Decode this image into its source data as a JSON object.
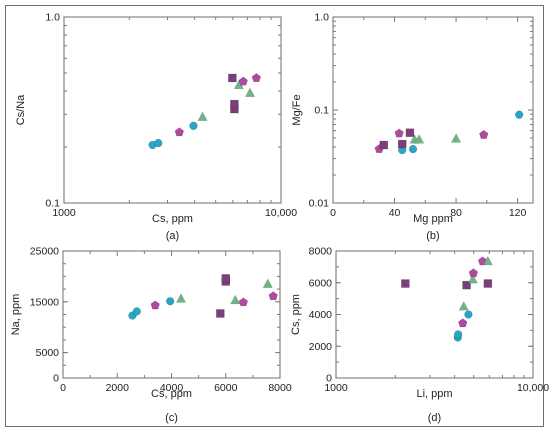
{
  "colors": {
    "circle": "#2aa5c6",
    "square": "#7b3f7b",
    "pentagon": "#b04a9e",
    "triangle": "#6fb589"
  },
  "chart_data": [
    {
      "id": "a",
      "type": "scatter",
      "panel_label": "(a)",
      "xlabel": "Cs, ppm",
      "ylabel": "Cs/Na",
      "xscale": "log",
      "yscale": "log",
      "xlim": [
        1000,
        10000
      ],
      "ylim": [
        0.1,
        1.0
      ],
      "xticks": [
        {
          "v": 1000,
          "label": "1000"
        },
        {
          "v": 10000,
          "label": "10,000"
        }
      ],
      "yticks": [
        {
          "v": 0.1,
          "label": "0.1"
        },
        {
          "v": 1.0,
          "label": "1.0"
        }
      ],
      "points": [
        {
          "shape": "circle",
          "x": 2560,
          "y": 0.205
        },
        {
          "shape": "circle",
          "x": 2720,
          "y": 0.21
        },
        {
          "shape": "pentagon",
          "x": 3400,
          "y": 0.24
        },
        {
          "shape": "circle",
          "x": 3950,
          "y": 0.26
        },
        {
          "shape": "triangle",
          "x": 4350,
          "y": 0.29
        },
        {
          "shape": "square",
          "x": 5970,
          "y": 0.47
        },
        {
          "shape": "square",
          "x": 6100,
          "y": 0.32
        },
        {
          "shape": "square",
          "x": 6100,
          "y": 0.34
        },
        {
          "shape": "triangle",
          "x": 6400,
          "y": 0.43
        },
        {
          "shape": "pentagon",
          "x": 6700,
          "y": 0.45
        },
        {
          "shape": "triangle",
          "x": 7200,
          "y": 0.39
        },
        {
          "shape": "pentagon",
          "x": 7700,
          "y": 0.47
        }
      ]
    },
    {
      "id": "b",
      "type": "scatter",
      "panel_label": "(b)",
      "xlabel": "Mg ppm",
      "ylabel": "Mg/Fe",
      "xscale": "linear",
      "yscale": "log",
      "xlim": [
        0,
        130
      ],
      "ylim": [
        0.01,
        1.0
      ],
      "xticks": [
        {
          "v": 0,
          "label": "0"
        },
        {
          "v": 40,
          "label": "40"
        },
        {
          "v": 80,
          "label": "80"
        },
        {
          "v": 120,
          "label": "120"
        }
      ],
      "yticks": [
        {
          "v": 0.01,
          "label": "0.01"
        },
        {
          "v": 0.1,
          "label": "0.1"
        },
        {
          "v": 1.0,
          "label": "1.0"
        }
      ],
      "points": [
        {
          "shape": "pentagon",
          "x": 30,
          "y": 0.038
        },
        {
          "shape": "square",
          "x": 33,
          "y": 0.042
        },
        {
          "shape": "pentagon",
          "x": 43,
          "y": 0.056
        },
        {
          "shape": "circle",
          "x": 45,
          "y": 0.037
        },
        {
          "shape": "square",
          "x": 45,
          "y": 0.043
        },
        {
          "shape": "square",
          "x": 50,
          "y": 0.057
        },
        {
          "shape": "circle",
          "x": 52,
          "y": 0.038
        },
        {
          "shape": "triangle",
          "x": 53,
          "y": 0.048
        },
        {
          "shape": "triangle",
          "x": 56,
          "y": 0.048
        },
        {
          "shape": "triangle",
          "x": 80,
          "y": 0.049
        },
        {
          "shape": "pentagon",
          "x": 98,
          "y": 0.054
        },
        {
          "shape": "circle",
          "x": 121,
          "y": 0.089
        }
      ]
    },
    {
      "id": "c",
      "type": "scatter",
      "panel_label": "(c)",
      "xlabel": "Cs, ppm",
      "ylabel": "Na, ppm",
      "xscale": "linear",
      "yscale": "linear",
      "xlim": [
        0,
        8000
      ],
      "ylim": [
        0,
        25000
      ],
      "xticks": [
        {
          "v": 0,
          "label": "0"
        },
        {
          "v": 2000,
          "label": "2000"
        },
        {
          "v": 4000,
          "label": "4000"
        },
        {
          "v": 6000,
          "label": "6000"
        },
        {
          "v": 8000,
          "label": "8000"
        }
      ],
      "yticks": [
        {
          "v": 0,
          "label": "0"
        },
        {
          "v": 5000,
          "label": "5000"
        },
        {
          "v": 15000,
          "label": "15000"
        },
        {
          "v": 25000,
          "label": "25000"
        }
      ],
      "points": [
        {
          "shape": "circle",
          "x": 2560,
          "y": 12300
        },
        {
          "shape": "circle",
          "x": 2720,
          "y": 13100
        },
        {
          "shape": "pentagon",
          "x": 3400,
          "y": 14300
        },
        {
          "shape": "circle",
          "x": 3950,
          "y": 15100
        },
        {
          "shape": "triangle",
          "x": 4350,
          "y": 15600
        },
        {
          "shape": "square",
          "x": 5800,
          "y": 12700
        },
        {
          "shape": "square",
          "x": 6000,
          "y": 19000
        },
        {
          "shape": "square",
          "x": 6000,
          "y": 19600
        },
        {
          "shape": "triangle",
          "x": 6350,
          "y": 15300
        },
        {
          "shape": "pentagon",
          "x": 6650,
          "y": 14900
        },
        {
          "shape": "triangle",
          "x": 7550,
          "y": 18500
        },
        {
          "shape": "pentagon",
          "x": 7750,
          "y": 16100
        }
      ]
    },
    {
      "id": "d",
      "type": "scatter",
      "panel_label": "(d)",
      "xlabel": "Li, ppm",
      "ylabel": "Cs, ppm",
      "xscale": "log",
      "yscale": "linear",
      "xlim": [
        1000,
        10000
      ],
      "ylim": [
        0,
        8000
      ],
      "xticks": [
        {
          "v": 1000,
          "label": "1000"
        },
        {
          "v": 10000,
          "label": "10,000"
        }
      ],
      "yticks": [
        {
          "v": 0,
          "label": "0"
        },
        {
          "v": 2000,
          "label": "2000"
        },
        {
          "v": 4000,
          "label": "4000"
        },
        {
          "v": 6000,
          "label": "6000"
        },
        {
          "v": 8000,
          "label": "8000"
        }
      ],
      "points": [
        {
          "shape": "square",
          "x": 2250,
          "y": 5950
        },
        {
          "shape": "circle",
          "x": 4150,
          "y": 2550
        },
        {
          "shape": "circle",
          "x": 4170,
          "y": 2750
        },
        {
          "shape": "pentagon",
          "x": 4400,
          "y": 3450
        },
        {
          "shape": "triangle",
          "x": 4450,
          "y": 4500
        },
        {
          "shape": "square",
          "x": 4600,
          "y": 5850
        },
        {
          "shape": "circle",
          "x": 4700,
          "y": 4000
        },
        {
          "shape": "triangle",
          "x": 4950,
          "y": 6200
        },
        {
          "shape": "pentagon",
          "x": 4980,
          "y": 6600
        },
        {
          "shape": "pentagon",
          "x": 5550,
          "y": 7350
        },
        {
          "shape": "triangle",
          "x": 5900,
          "y": 7350
        },
        {
          "shape": "square",
          "x": 5900,
          "y": 5950
        }
      ]
    }
  ]
}
